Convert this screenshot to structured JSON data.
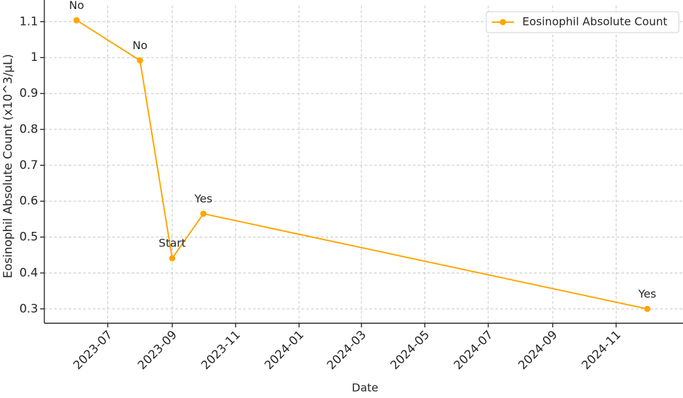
{
  "chart_data": {
    "type": "line",
    "x_label": "Date",
    "y_label": "Eosinophil Absolute Count (x10^3/µL)",
    "x": [
      "2023-06",
      "2023-08",
      "2023-09",
      "2023-10",
      "2024-12"
    ],
    "series": [
      {
        "name": "Eosinophil Absolute Count",
        "color": "#ffa500",
        "values": [
          1.104,
          0.992,
          0.441,
          0.565,
          0.3
        ],
        "annotations": [
          "No",
          "No",
          "Start",
          "Yes",
          "Yes"
        ]
      }
    ],
    "xlim": [
      "2023-05",
      "2025-01"
    ],
    "xticks": [
      "2023-07",
      "2023-09",
      "2023-11",
      "2024-01",
      "2024-03",
      "2024-05",
      "2024-07",
      "2024-09",
      "2024-11"
    ],
    "ylim": [
      0.26,
      1.145
    ],
    "yticks": [
      0.3,
      0.4,
      0.5,
      0.6,
      0.7,
      0.8,
      0.9,
      1.0,
      1.1
    ],
    "grid": true,
    "legend": "upper right"
  }
}
